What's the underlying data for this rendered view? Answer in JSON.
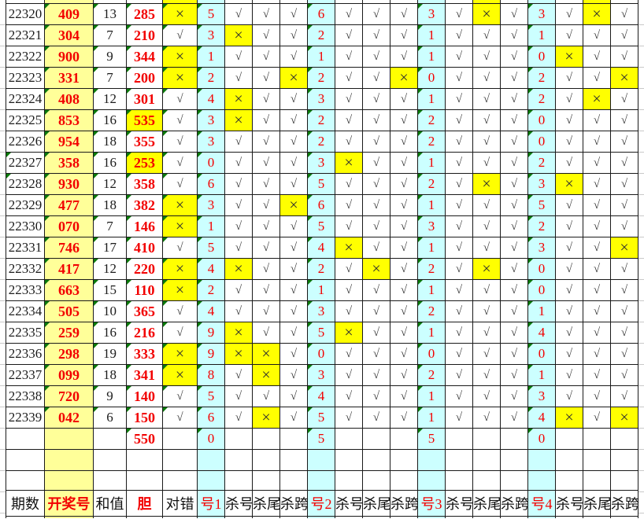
{
  "sheet": {
    "title": "lottery-kill-number-analysis-grid",
    "columns": [
      "期数",
      "开奖号",
      "和值",
      "胆",
      "对错",
      "号1",
      "杀号",
      "杀尾",
      "杀跨",
      "号2",
      "杀号",
      "杀尾",
      "杀跨",
      "号3",
      "杀号",
      "杀尾",
      "杀跨",
      "号4",
      "杀号",
      "杀尾",
      "杀跨"
    ],
    "rows": [
      [
        "22320",
        "409",
        "13",
        "285",
        "x",
        "5",
        "v",
        "v",
        "v",
        "6",
        "v",
        "v",
        "v",
        "3",
        "v",
        "x",
        "v",
        "3",
        "v",
        "x",
        "v"
      ],
      [
        "22321",
        "304",
        "7",
        "210",
        "v",
        "3",
        "x",
        "v",
        "v",
        "2",
        "v",
        "v",
        "v",
        "1",
        "v",
        "v",
        "v",
        "1",
        "v",
        "v",
        "v"
      ],
      [
        "22322",
        "900",
        "9",
        "344",
        "x",
        "1",
        "v",
        "v",
        "v",
        "1",
        "v",
        "v",
        "v",
        "1",
        "v",
        "v",
        "v",
        "0",
        "x",
        "v",
        "v"
      ],
      [
        "22323",
        "331",
        "7",
        "200",
        "x",
        "2",
        "v",
        "v",
        "x",
        "2",
        "v",
        "v",
        "x",
        "0",
        "v",
        "v",
        "v",
        "2",
        "v",
        "v",
        "x"
      ],
      [
        "22324",
        "408",
        "12",
        "301",
        "v",
        "4",
        "x",
        "v",
        "v",
        "3",
        "v",
        "v",
        "v",
        "1",
        "v",
        "v",
        "v",
        "2",
        "v",
        "x",
        "v"
      ],
      [
        "22325",
        "853",
        "16",
        "535",
        "v",
        "3",
        "x",
        "v",
        "v",
        "2",
        "v",
        "v",
        "v",
        "2",
        "v",
        "v",
        "v",
        "0",
        "v",
        "v",
        "v"
      ],
      [
        "22326",
        "954",
        "18",
        "355",
        "v",
        "3",
        "v",
        "v",
        "v",
        "2",
        "v",
        "v",
        "v",
        "2",
        "v",
        "v",
        "v",
        "0",
        "v",
        "v",
        "v"
      ],
      [
        "22327",
        "358",
        "16",
        "253",
        "v",
        "0",
        "v",
        "v",
        "v",
        "3",
        "x",
        "v",
        "v",
        "1",
        "v",
        "v",
        "v",
        "2",
        "v",
        "v",
        "v"
      ],
      [
        "22328",
        "930",
        "12",
        "358",
        "v",
        "6",
        "v",
        "v",
        "v",
        "5",
        "v",
        "v",
        "v",
        "2",
        "v",
        "x",
        "v",
        "3",
        "x",
        "v",
        "v"
      ],
      [
        "22329",
        "477",
        "18",
        "382",
        "x",
        "3",
        "v",
        "v",
        "x",
        "6",
        "v",
        "v",
        "v",
        "1",
        "v",
        "v",
        "v",
        "5",
        "v",
        "v",
        "v"
      ],
      [
        "22330",
        "070",
        "7",
        "146",
        "x",
        "1",
        "v",
        "v",
        "v",
        "5",
        "v",
        "v",
        "v",
        "3",
        "v",
        "v",
        "v",
        "2",
        "v",
        "v",
        "v"
      ],
      [
        "22331",
        "746",
        "17",
        "410",
        "v",
        "5",
        "v",
        "v",
        "v",
        "4",
        "x",
        "v",
        "v",
        "1",
        "v",
        "v",
        "v",
        "3",
        "v",
        "v",
        "x"
      ],
      [
        "22332",
        "417",
        "12",
        "220",
        "x",
        "4",
        "x",
        "v",
        "v",
        "2",
        "v",
        "x",
        "v",
        "2",
        "v",
        "x",
        "v",
        "0",
        "v",
        "v",
        "v"
      ],
      [
        "22333",
        "663",
        "15",
        "110",
        "x",
        "2",
        "v",
        "v",
        "v",
        "1",
        "v",
        "v",
        "v",
        "1",
        "v",
        "v",
        "v",
        "0",
        "v",
        "v",
        "v"
      ],
      [
        "22334",
        "505",
        "10",
        "365",
        "v",
        "4",
        "v",
        "v",
        "v",
        "3",
        "v",
        "v",
        "v",
        "2",
        "v",
        "v",
        "v",
        "1",
        "v",
        "v",
        "v"
      ],
      [
        "22335",
        "259",
        "16",
        "216",
        "v",
        "9",
        "x",
        "v",
        "v",
        "5",
        "x",
        "v",
        "v",
        "1",
        "v",
        "v",
        "v",
        "4",
        "v",
        "v",
        "v"
      ],
      [
        "22336",
        "298",
        "19",
        "333",
        "x",
        "9",
        "x",
        "x",
        "v",
        "0",
        "v",
        "v",
        "v",
        "0",
        "v",
        "v",
        "v",
        "0",
        "v",
        "v",
        "v"
      ],
      [
        "22337",
        "099",
        "18",
        "341",
        "x",
        "8",
        "v",
        "x",
        "v",
        "3",
        "v",
        "v",
        "v",
        "2",
        "v",
        "v",
        "v",
        "1",
        "v",
        "v",
        "v"
      ],
      [
        "22338",
        "720",
        "9",
        "140",
        "v",
        "5",
        "v",
        "v",
        "v",
        "4",
        "v",
        "v",
        "v",
        "1",
        "v",
        "v",
        "v",
        "3",
        "v",
        "v",
        "v"
      ],
      [
        "22339",
        "042",
        "6",
        "150",
        "v",
        "6",
        "v",
        "x",
        "v",
        "5",
        "v",
        "v",
        "v",
        "1",
        "v",
        "v",
        "v",
        "4",
        "x",
        "v",
        "x"
      ]
    ],
    "summary_row": [
      "",
      "",
      "",
      "550",
      "",
      "0",
      "",
      "",
      "",
      "5",
      "",
      "",
      "",
      "5",
      "",
      "",
      "",
      "0",
      "",
      "",
      ""
    ],
    "dan_highlight_periods": [
      "22325",
      "22327"
    ],
    "period_flag_periods": [
      "22327",
      "22328"
    ],
    "glyphs": {
      "check": "√",
      "cross": "×"
    },
    "colors": {
      "open_column_bg": "#FFFF99",
      "highlight_yellow": "#FFFF00",
      "number_column_bg": "#CCFFFF",
      "value_red": "#F20000",
      "flag_green": "#0B7A0B",
      "grid_line": "#1a1a1a"
    }
  }
}
